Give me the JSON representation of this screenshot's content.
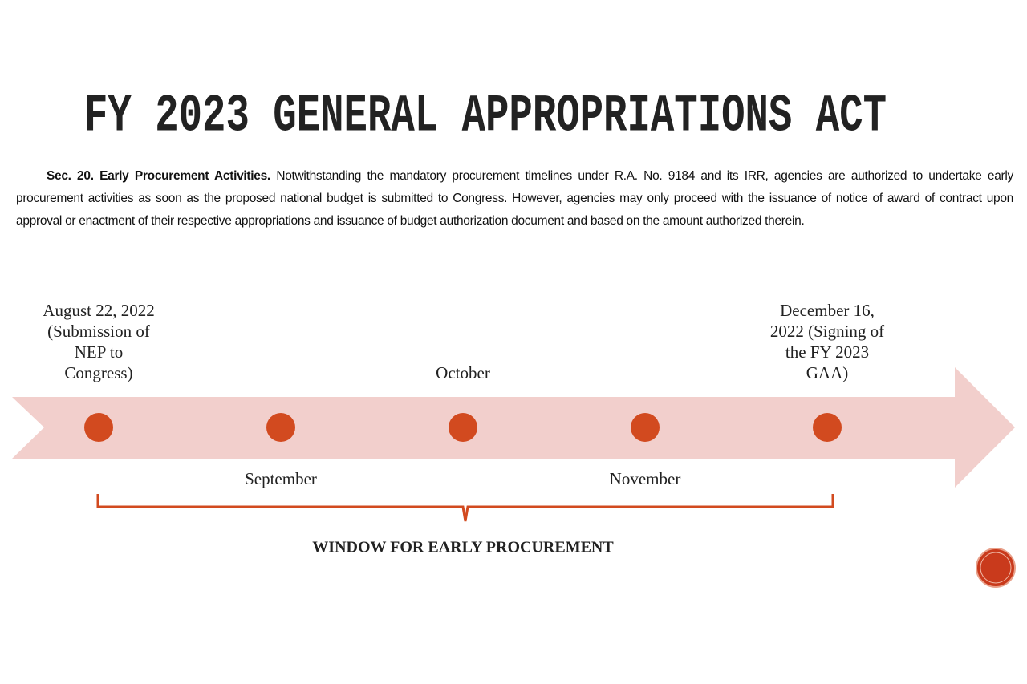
{
  "header": {
    "title": "FY 2023 GENERAL APPROPRIATIONS ACT"
  },
  "provision": {
    "heading": "Sec. 20. Early Procurement Activities.",
    "text": "Notwithstanding the mandatory procurement timelines under R.A. No. 9184 and its IRR, agencies are authorized to undertake early procurement activities as soon as the proposed national budget is submitted to Congress. However, agencies may only proceed with the issuance of notice of award of contract upon approval or enactment of their respective appropriations and issuance of budget authorization document and based on the amount authorized therein."
  },
  "timeline": {
    "points": [
      {
        "lines": [
          "August 22, 2022",
          "(Submission of",
          "NEP to",
          "Congress)"
        ],
        "side": "above"
      },
      {
        "lines": [
          "September"
        ],
        "side": "below"
      },
      {
        "lines": [
          "October"
        ],
        "side": "above"
      },
      {
        "lines": [
          "November"
        ],
        "side": "below"
      },
      {
        "lines": [
          "December 16,",
          "2022 (Signing of",
          "the FY 2023",
          "GAA)"
        ],
        "side": "above"
      }
    ],
    "window_label": "WINDOW FOR EARLY PROCUREMENT"
  }
}
